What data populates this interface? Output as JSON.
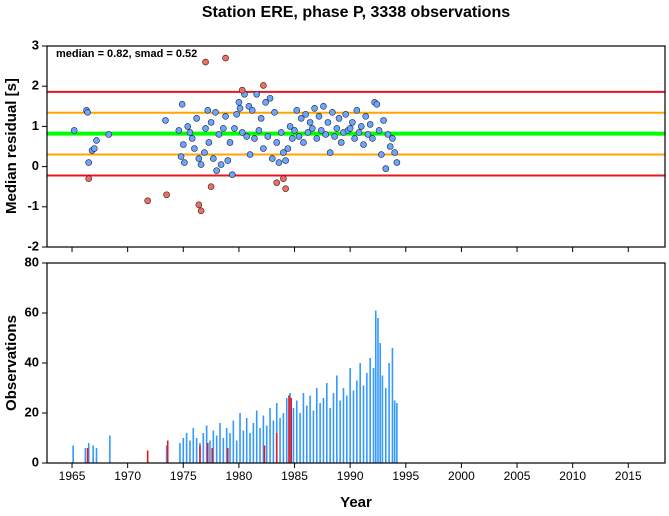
{
  "chart_data": [
    {
      "type": "scatter",
      "title": "Station ERE, phase P, 3338 observations",
      "y_label": "Median residual [s]",
      "annotation": "median = 0.82, smad = 0.52",
      "xlim": [
        1962.75,
        2018.3
      ],
      "xticks": [
        1965,
        1970,
        1975,
        1980,
        1985,
        1990,
        1995,
        2000,
        2005,
        2010,
        2015
      ],
      "ylim": [
        -2,
        3
      ],
      "yticks": [
        -2,
        -1,
        0,
        1,
        2,
        3
      ],
      "hlines": [
        {
          "value": 1.86,
          "color": "#e8171c"
        },
        {
          "value": 1.34,
          "color": "#ffa500"
        },
        {
          "value": 0.82,
          "color": "#00ff00"
        },
        {
          "value": 0.3,
          "color": "#ffa500"
        },
        {
          "value": -0.22,
          "color": "#e8171c"
        }
      ],
      "series": [
        {
          "color": "#6aa6ff",
          "x": [
            1965.2,
            1966.3,
            1966.4,
            1966.5,
            1966.8,
            1967,
            1967.2,
            1968.3,
            1973.4,
            1974.6,
            1974.8,
            1974.9,
            1975,
            1975.1,
            1975.4,
            1975.6,
            1975.8,
            1976,
            1976.2,
            1976.4,
            1976.6,
            1976.9,
            1977,
            1977.2,
            1977.3,
            1977.5,
            1977.7,
            1977.9,
            1978,
            1978.2,
            1978.4,
            1978.6,
            1978.8,
            1979,
            1979.2,
            1979.4,
            1979.6,
            1979.8,
            1980,
            1980.1,
            1980.3,
            1980.5,
            1980.7,
            1980.9,
            1981,
            1981.2,
            1981.4,
            1981.6,
            1981.8,
            1982,
            1982.2,
            1982.4,
            1982.6,
            1982.8,
            1983,
            1983.2,
            1983.4,
            1983.6,
            1983.8,
            1984,
            1984.2,
            1984.4,
            1984.6,
            1984.8,
            1985,
            1985.2,
            1985.4,
            1985.6,
            1985.8,
            1986,
            1986.2,
            1986.4,
            1986.6,
            1986.8,
            1987,
            1987.2,
            1987.4,
            1987.6,
            1987.8,
            1988,
            1988.2,
            1988.4,
            1988.6,
            1988.8,
            1989,
            1989.2,
            1989.4,
            1989.6,
            1989.8,
            1990,
            1990.2,
            1990.4,
            1990.6,
            1990.8,
            1991,
            1991.2,
            1991.4,
            1991.6,
            1991.8,
            1992,
            1992.2,
            1992.4,
            1992.6,
            1992.8,
            1993,
            1993.2,
            1993.4,
            1993.6,
            1993.8,
            1994,
            1994.2
          ],
          "values": [
            0.9,
            1.4,
            1.35,
            0.1,
            0.4,
            0.45,
            0.65,
            0.8,
            1.15,
            0.9,
            0.25,
            1.55,
            0.55,
            0.1,
            1.0,
            0.85,
            0.7,
            0.45,
            1.2,
            0.2,
            0.05,
            0.35,
            0.95,
            1.4,
            0.6,
            1.1,
            0.2,
            1.35,
            -0.1,
            0.8,
            0.05,
            0.95,
            1.25,
            0.15,
            0.6,
            -0.2,
            0.95,
            1.3,
            1.6,
            1.45,
            0.85,
            1.8,
            0.75,
            1.5,
            0.3,
            1.4,
            0.7,
            1.8,
            0.9,
            1.2,
            0.45,
            1.6,
            0.75,
            1.7,
            0.2,
            1.35,
            0.6,
            0.1,
            0.85,
            0.35,
            0.15,
            0.45,
            1.0,
            0.7,
            0.9,
            1.4,
            0.75,
            1.2,
            0.6,
            1.3,
            0.85,
            1.1,
            0.95,
            1.45,
            0.7,
            1.25,
            0.9,
            1.5,
            0.8,
            1.1,
            0.35,
            1.35,
            0.75,
            0.95,
            1.2,
            0.6,
            0.85,
            1.3,
            0.9,
            0.95,
            1.1,
            0.7,
            1.4,
            0.85,
            1.0,
            0.55,
            1.25,
            0.8,
            1.05,
            0.7,
            1.6,
            1.55,
            0.9,
            0.3,
            1.15,
            -0.05,
            0.8,
            0.5,
            0.7,
            0.35,
            0.1
          ]
        },
        {
          "color": "#f26e5a",
          "x": [
            1966.5,
            1971.8,
            1973.5,
            1976.4,
            1976.6,
            1977,
            1977.5,
            1978.8,
            1980.3,
            1982.2,
            1983.4,
            1984,
            1984.2
          ],
          "values": [
            -0.3,
            -0.85,
            -0.7,
            -0.95,
            -1.1,
            2.6,
            -0.5,
            2.7,
            1.9,
            2.02,
            -0.4,
            -0.3,
            -0.55
          ]
        }
      ]
    },
    {
      "type": "bar",
      "x_label": "Year",
      "y_label": "Observations",
      "xlim": [
        1962.75,
        2018.3
      ],
      "xticks": [
        1965,
        1970,
        1975,
        1980,
        1985,
        1990,
        1995,
        2000,
        2005,
        2010,
        2015
      ],
      "ylim": [
        0,
        80
      ],
      "yticks": [
        0,
        20,
        40,
        60,
        80
      ],
      "series": [
        {
          "color": "#3399ff",
          "x": [
            1965.1,
            1966.2,
            1966.5,
            1966.9,
            1967.2,
            1968.4,
            1973.5,
            1974.7,
            1975.0,
            1975.3,
            1975.6,
            1975.9,
            1976.2,
            1976.5,
            1976.8,
            1977.1,
            1977.4,
            1977.7,
            1978.0,
            1978.3,
            1978.6,
            1978.9,
            1979.2,
            1979.5,
            1979.8,
            1980.1,
            1980.4,
            1980.7,
            1981.0,
            1981.3,
            1981.6,
            1981.9,
            1982.2,
            1982.5,
            1982.8,
            1983.1,
            1983.4,
            1983.7,
            1984.0,
            1984.3,
            1984.6,
            1984.9,
            1985.2,
            1985.5,
            1985.8,
            1986.1,
            1986.4,
            1986.7,
            1987.0,
            1987.3,
            1987.6,
            1987.9,
            1988.2,
            1988.5,
            1988.8,
            1989.1,
            1989.4,
            1989.7,
            1990.0,
            1990.3,
            1990.6,
            1990.9,
            1991.2,
            1991.5,
            1991.8,
            1992.1,
            1992.3,
            1992.5,
            1992.7,
            1992.9,
            1993.2,
            1993.5,
            1993.8,
            1994.0,
            1994.2
          ],
          "values": [
            7,
            6,
            8,
            7,
            6,
            11,
            7,
            8,
            10,
            12,
            9,
            14,
            10,
            8,
            12,
            15,
            9,
            13,
            11,
            16,
            10,
            14,
            12,
            17,
            9,
            20,
            13,
            18,
            12,
            16,
            21,
            14,
            19,
            15,
            22,
            17,
            24,
            18,
            20,
            26,
            28,
            22,
            25,
            20,
            28,
            23,
            27,
            21,
            30,
            24,
            26,
            32,
            22,
            28,
            35,
            25,
            30,
            27,
            38,
            29,
            33,
            40,
            31,
            36,
            42,
            38,
            61,
            58,
            48,
            35,
            30,
            40,
            46,
            25,
            24
          ]
        },
        {
          "color": "#e8171c",
          "x": [
            1966.4,
            1971.8,
            1973.6,
            1976.5,
            1977.2,
            1977.6,
            1979.0,
            1982.3,
            1983.4,
            1984.5,
            1984.7
          ],
          "values": [
            6,
            5,
            9,
            7,
            8,
            6,
            6,
            7,
            12,
            27,
            26
          ]
        }
      ]
    }
  ]
}
